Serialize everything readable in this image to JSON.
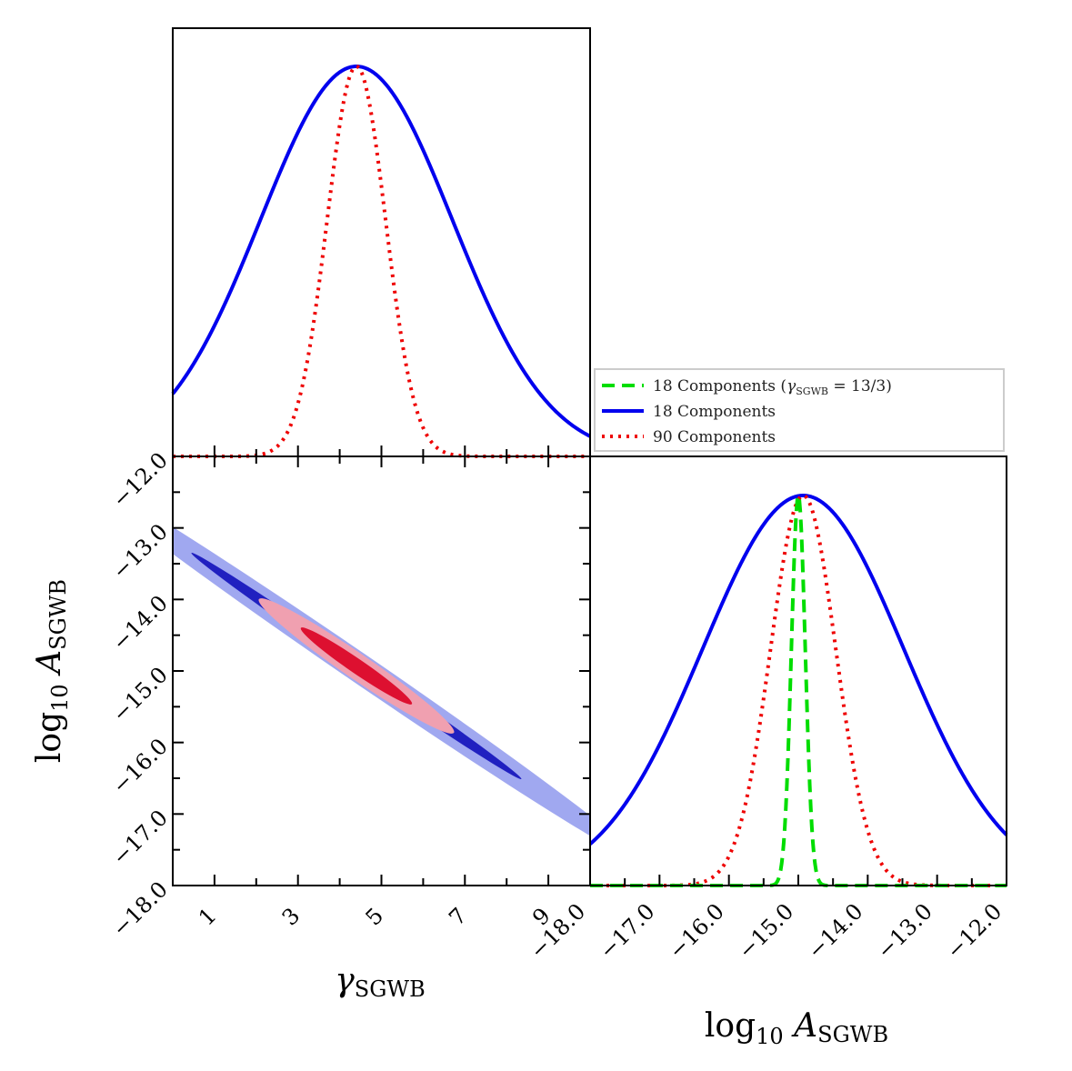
{
  "chart_data": {
    "type": "corner",
    "parameters": [
      {
        "symbol": "γ",
        "subscript": "SGWB",
        "range": [
          0,
          10
        ],
        "ticks": [
          1,
          3,
          5,
          7,
          9
        ],
        "tick_labels": [
          "1",
          "3",
          "5",
          "7",
          "9"
        ]
      },
      {
        "prefix": "log",
        "prefix_sub": "10",
        "symbol": "A",
        "subscript": "SGWB",
        "range": [
          -18.0,
          -12.0
        ],
        "ticks": [
          -18,
          -17,
          -16,
          -15,
          -14,
          -13,
          -12
        ],
        "tick_labels": [
          "−18.0",
          "−17.0",
          "−16.0",
          "−15.0",
          "−14.0",
          "−13.0",
          "−12.0"
        ]
      }
    ],
    "legend": {
      "location": "upper-right (between top and right panels)",
      "entries": [
        {
          "label": "18 Components (",
          "label_math": "γ",
          "label_sub": "SGWB",
          "label_tail": " = 13/3)",
          "color": "#00dd00",
          "style": "dashed"
        },
        {
          "label": "18 Components",
          "color": "#0000ee",
          "style": "solid"
        },
        {
          "label": "90 Components",
          "color": "#ee0000",
          "style": "dotted"
        }
      ]
    },
    "series": [
      {
        "name": "18 Components",
        "color": "#0000ee",
        "style": "solid",
        "gamma": {
          "mean": 4.4,
          "sigma": 2.3
        },
        "logA": {
          "mean": -14.93,
          "sigma": 1.45
        },
        "contour_fill": [
          "#2020c0",
          "#a0a8f0"
        ]
      },
      {
        "name": "90 Components",
        "color": "#ee0000",
        "style": "dotted",
        "gamma": {
          "mean": 4.4,
          "sigma": 0.7
        },
        "logA": {
          "mean": -14.93,
          "sigma": 0.47
        },
        "contour_fill": [
          "#dd1030",
          "#f0a0b0"
        ]
      },
      {
        "name": "18 Components (γSGWB = 13/3)",
        "color": "#00dd00",
        "style": "dashed",
        "logA": {
          "mean": -15.0,
          "sigma": 0.1
        }
      }
    ]
  }
}
